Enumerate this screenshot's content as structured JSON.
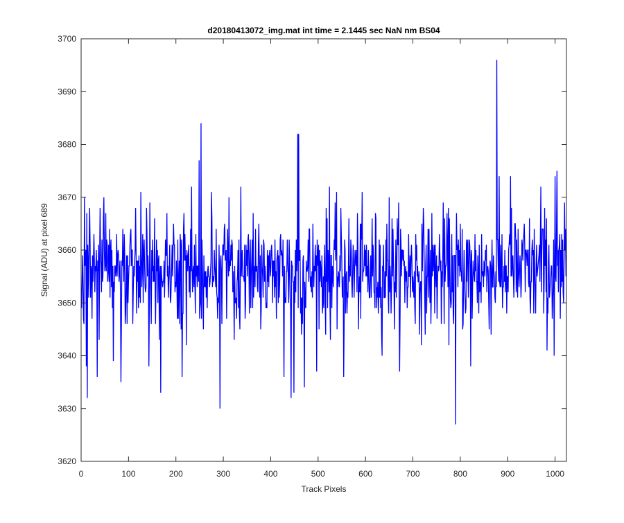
{
  "chart_data": {
    "type": "line",
    "title": "d20180413072_img.mat int time = 2.1445 sec  NaN nm BS04",
    "xlabel": "Track Pixels",
    "ylabel": "Signal (ADU) at pixel 689",
    "xlim": [
      0,
      1024
    ],
    "ylim": [
      3620,
      3700
    ],
    "xticks": [
      "0",
      "100",
      "200",
      "300",
      "400",
      "500",
      "600",
      "700",
      "800",
      "900",
      "1000"
    ],
    "yticks": [
      "3620",
      "3630",
      "3640",
      "3650",
      "3660",
      "3670",
      "3680",
      "3690",
      "3700"
    ],
    "grid": false,
    "legend": "none",
    "series": [
      {
        "name": "",
        "color": "#0000ff",
        "x_start": 1,
        "x_step": 1,
        "n_points": 1024,
        "baseline": 3656,
        "noise_std": 5.5,
        "anchor_points": [
          [
            11,
            3638
          ],
          [
            13,
            3632
          ],
          [
            34,
            3636
          ],
          [
            48,
            3670
          ],
          [
            68,
            3639
          ],
          [
            84,
            3635
          ],
          [
            120,
            3658
          ],
          [
            143,
            3638
          ],
          [
            168,
            3633
          ],
          [
            213,
            3636
          ],
          [
            233,
            3672
          ],
          [
            249,
            3677
          ],
          [
            253,
            3684
          ],
          [
            293,
            3630
          ],
          [
            312,
            3670
          ],
          [
            337,
            3672
          ],
          [
            361,
            3662
          ],
          [
            428,
            3636
          ],
          [
            443,
            3632
          ],
          [
            449,
            3633
          ],
          [
            457,
            3682
          ],
          [
            459,
            3682
          ],
          [
            471,
            3634
          ],
          [
            524,
            3672
          ],
          [
            554,
            3636
          ],
          [
            650,
            3670
          ],
          [
            656,
            3666
          ],
          [
            790,
            3627
          ],
          [
            822,
            3638
          ],
          [
            877,
            3696
          ],
          [
            906,
            3674
          ],
          [
            970,
            3672
          ],
          [
            998,
            3640
          ],
          [
            1000,
            3674
          ],
          [
            1004,
            3675
          ],
          [
            1011,
            3647
          ]
        ]
      }
    ]
  }
}
